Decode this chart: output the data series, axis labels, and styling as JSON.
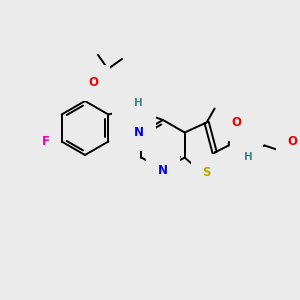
{
  "background_color": "#ebebeb",
  "atom_colors": {
    "C": "#000000",
    "N": "#0000ee",
    "O": "#ee0000",
    "S": "#bbaa00",
    "F": "#ee00aa",
    "H": "#448888"
  },
  "bond_lw": 1.4,
  "font_size": 8.5
}
